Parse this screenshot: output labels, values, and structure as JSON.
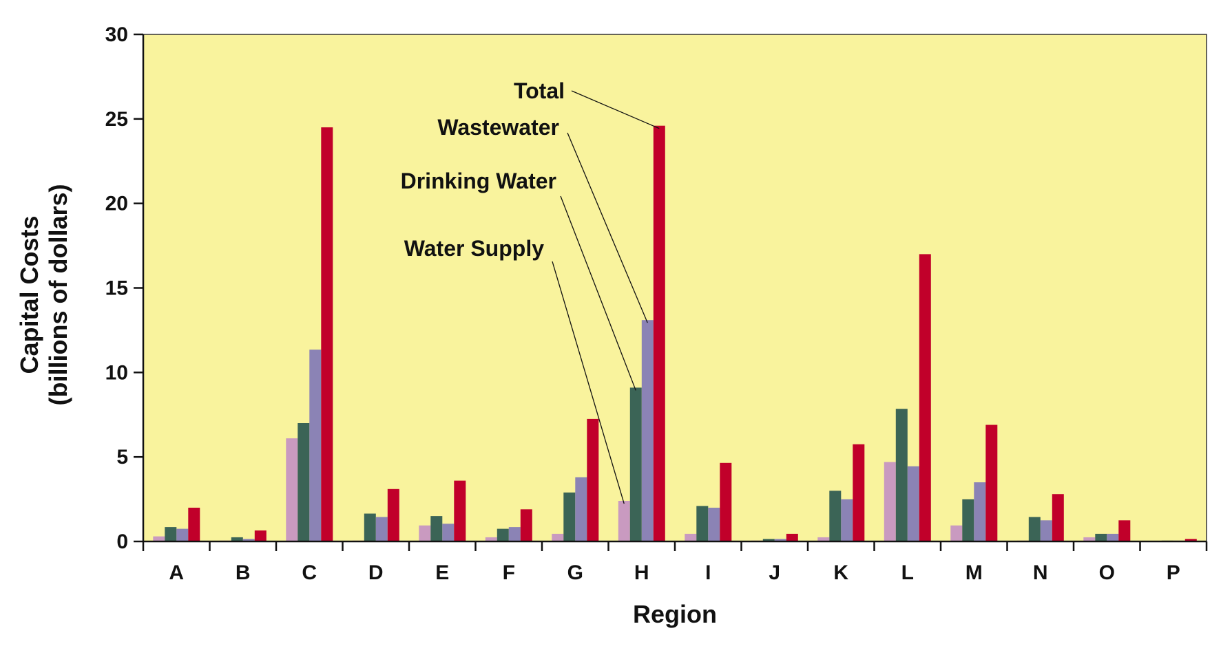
{
  "chart_data": {
    "type": "bar",
    "title": "",
    "xlabel": "Region",
    "ylabel_line1": "Capital Costs",
    "ylabel_line2": "(billions of dollars)",
    "ylim": [
      0,
      30
    ],
    "yticks": [
      0,
      5,
      10,
      15,
      20,
      25,
      30
    ],
    "grid": false,
    "legend": "callout labels pointing to region H bars",
    "plot_background": "#f9f39d",
    "categories": [
      "A",
      "B",
      "C",
      "D",
      "E",
      "F",
      "G",
      "H",
      "I",
      "J",
      "K",
      "L",
      "M",
      "N",
      "O",
      "P"
    ],
    "series": [
      {
        "name": "Water Supply",
        "color": "#c99ac0",
        "values": [
          0.3,
          0.05,
          6.1,
          0.05,
          0.95,
          0.25,
          0.45,
          2.4,
          0.45,
          0.05,
          0.25,
          4.7,
          0.95,
          0.05,
          0.25,
          0.0
        ]
      },
      {
        "name": "Drinking Water",
        "color": "#3b6456",
        "values": [
          0.85,
          0.25,
          7.0,
          1.65,
          1.5,
          0.75,
          2.9,
          9.1,
          2.1,
          0.15,
          3.0,
          7.85,
          2.5,
          1.45,
          0.45,
          0.05
        ]
      },
      {
        "name": "Wastewater",
        "color": "#8b83b5",
        "values": [
          0.75,
          0.15,
          11.35,
          1.45,
          1.05,
          0.85,
          3.8,
          13.1,
          2.0,
          0.15,
          2.5,
          4.45,
          3.5,
          1.25,
          0.45,
          0.05
        ]
      },
      {
        "name": "Total",
        "color": "#c1002a",
        "values": [
          2.0,
          0.65,
          24.5,
          3.1,
          3.6,
          1.9,
          7.25,
          24.6,
          4.65,
          0.45,
          5.75,
          17.0,
          6.9,
          2.8,
          1.25,
          0.15
        ]
      }
    ],
    "callouts": [
      {
        "series": "Total",
        "text": "Total",
        "target_category": "H"
      },
      {
        "series": "Wastewater",
        "text": "Wastewater",
        "target_category": "H"
      },
      {
        "series": "Drinking Water",
        "text": "Drinking Water",
        "target_category": "H"
      },
      {
        "series": "Water Supply",
        "text": "Water Supply",
        "target_category": "H"
      }
    ]
  }
}
